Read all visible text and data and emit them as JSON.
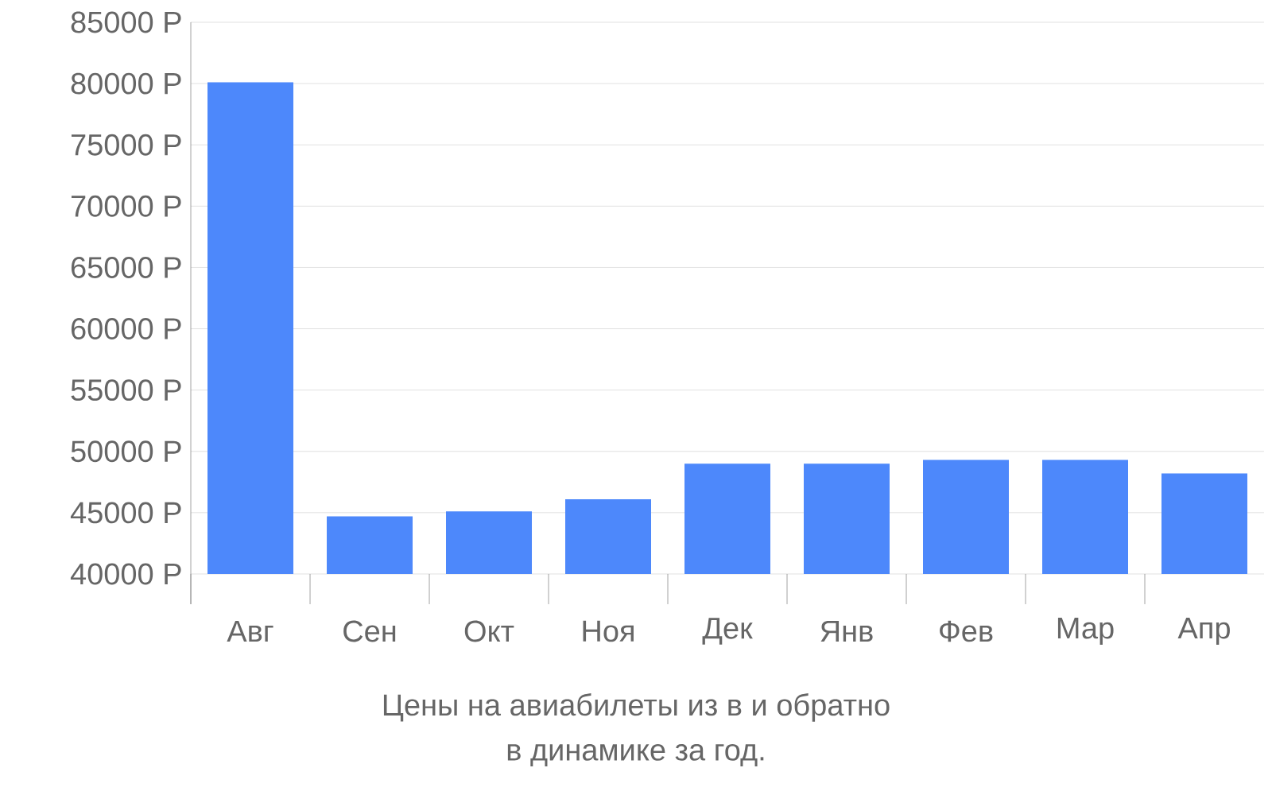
{
  "chart_data": {
    "type": "bar",
    "title": "Цены на авиабилеты из  в  и обратно",
    "annotations": [
      "в динамике за год."
    ],
    "categories": [
      "Авг",
      "Сен",
      "Окт",
      "Ноя",
      "Дек",
      "Янв",
      "Фев",
      "Мар",
      "Апр"
    ],
    "values": [
      80100,
      44700,
      45100,
      46100,
      49000,
      49000,
      49300,
      49300,
      48200
    ],
    "color": "#4d88fb",
    "ylim": [
      40000,
      85000
    ],
    "yticks": [
      {
        "value": 40000,
        "label": "40000 Р"
      },
      {
        "value": 45000,
        "label": "45000 Р"
      },
      {
        "value": 50000,
        "label": "50000 Р"
      },
      {
        "value": 55000,
        "label": "55000 Р"
      },
      {
        "value": 60000,
        "label": "60000 Р"
      },
      {
        "value": 65000,
        "label": "65000 Р"
      },
      {
        "value": 70000,
        "label": "70000 Р"
      },
      {
        "value": 75000,
        "label": "75000 Р"
      },
      {
        "value": 80000,
        "label": "80000 Р"
      },
      {
        "value": 85000,
        "label": "85000 Р"
      }
    ],
    "grid": true
  }
}
